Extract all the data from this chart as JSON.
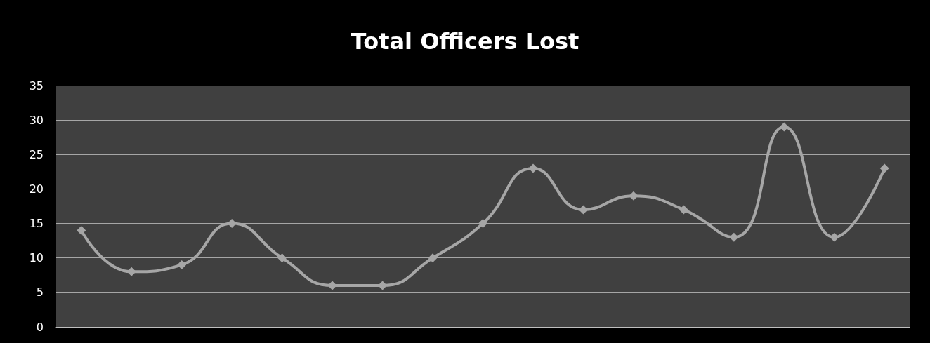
{
  "chart_data": {
    "type": "line",
    "title": "Total Officers Lost",
    "categories": [
      null,
      null,
      null,
      null,
      null,
      null,
      null,
      null,
      null,
      null,
      null,
      null,
      null,
      null,
      null,
      null,
      null
    ],
    "values": [
      14,
      8,
      9,
      15,
      10,
      6,
      6,
      10,
      15,
      23,
      17,
      19,
      17,
      13,
      29,
      13,
      23
    ],
    "color": "#a6a6a6",
    "ylim": [
      0,
      35
    ],
    "yticks": [
      0,
      5,
      10,
      15,
      20,
      25,
      30,
      35
    ],
    "grid": "y",
    "marker": "diamond",
    "line_style": "solid",
    "tick_labels": "y"
  }
}
